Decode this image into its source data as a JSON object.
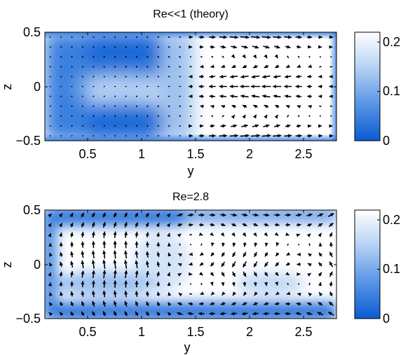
{
  "colors": {
    "colormap_low": "#0a5bd3",
    "colormap_high": "#ffffff",
    "arrow": "#000000"
  },
  "chart_data": [
    {
      "type": "heatmap",
      "subtype": "velocity-field-quiver",
      "title": "Re<<1 (theory)",
      "xlabel": "y",
      "ylabel": "z",
      "xlim": [
        0.1,
        2.8
      ],
      "ylim": [
        -0.5,
        0.5
      ],
      "xticks": [
        "0.5",
        "1",
        "1.5",
        "2",
        "2.5"
      ],
      "yticks": [
        "−0.5",
        "0",
        "0.5"
      ],
      "colorbar": {
        "range": [
          0,
          0.22
        ],
        "ticks": [
          "0",
          "0.1",
          "0.2"
        ]
      },
      "field": "theory"
    },
    {
      "type": "heatmap",
      "subtype": "velocity-field-quiver",
      "title": "Re=2.8",
      "xlabel": "y",
      "ylabel": "z",
      "xlim": [
        0.1,
        2.8
      ],
      "ylim": [
        -0.5,
        0.5
      ],
      "xticks": [
        "0.5",
        "1",
        "1.5",
        "2",
        "2.5"
      ],
      "yticks": [
        "−0.5",
        "0",
        "0.5"
      ],
      "colorbar": {
        "range": [
          0,
          0.22
        ],
        "ticks": [
          "0",
          "0.1",
          "0.2"
        ]
      },
      "field": "experiment"
    }
  ]
}
